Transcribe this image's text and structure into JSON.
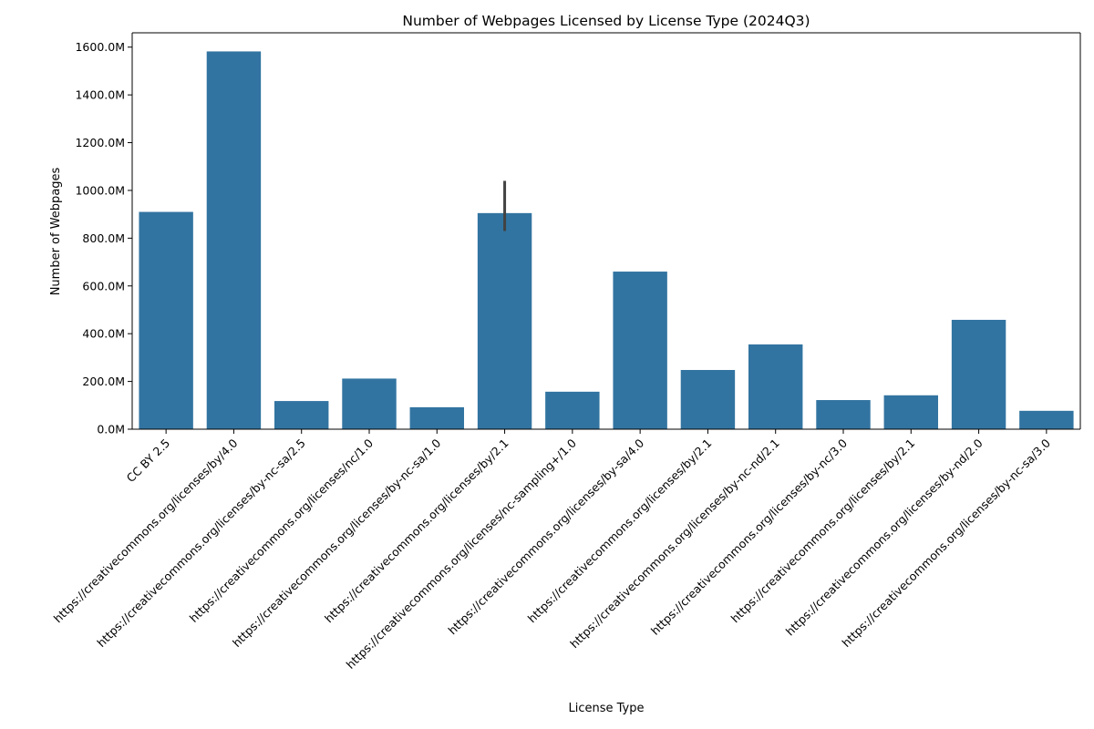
{
  "chart_data": {
    "type": "bar",
    "title": "Number of Webpages Licensed by License Type (2024Q3)",
    "xlabel": "License Type",
    "ylabel": "Number of Webpages",
    "ylim": [
      0,
      1660
    ],
    "yticks": [
      0,
      200,
      400,
      600,
      800,
      1000,
      1200,
      1400,
      1600
    ],
    "ytick_labels": [
      "0.0M",
      "200.0M",
      "400.0M",
      "600.0M",
      "800.0M",
      "1000.0M",
      "1200.0M",
      "1400.0M",
      "1600.0M"
    ],
    "y_unit": "M",
    "grid": false,
    "bar_color": "#3274a1",
    "errorbar_color": "#424242",
    "categories": [
      "CC BY 2.5",
      "https://creativecommons.org/licenses/by/4.0",
      "https://creativecommons.org/licenses/by-nc-sa/2.5",
      "https://creativecommons.org/licenses/nc/1.0",
      "https://creativecommons.org/licenses/by-nc-sa/1.0",
      "https://creativecommons.org/licenses/by/2.1",
      "https://creativecommons.org/licenses/nc-sampling+/1.0",
      "https://creativecommons.org/licenses/by-sa/4.0",
      "https://creativecommons.org/licenses/by/2.1",
      "https://creativecommons.org/licenses/by-nc-nd/2.1",
      "https://creativecommons.org/licenses/by-nc/3.0",
      "https://creativecommons.org/licenses/by/2.1",
      "https://creativecommons.org/licenses/by-nd/2.0",
      "https://creativecommons.org/licenses/by-nc-sa/3.0"
    ],
    "values": [
      910,
      1582,
      118,
      212,
      92,
      905,
      157,
      660,
      248,
      355,
      122,
      142,
      458,
      77
    ],
    "error_bars": [
      null,
      null,
      null,
      null,
      null,
      [
        830,
        1040
      ],
      null,
      null,
      null,
      null,
      null,
      null,
      null,
      null
    ]
  }
}
